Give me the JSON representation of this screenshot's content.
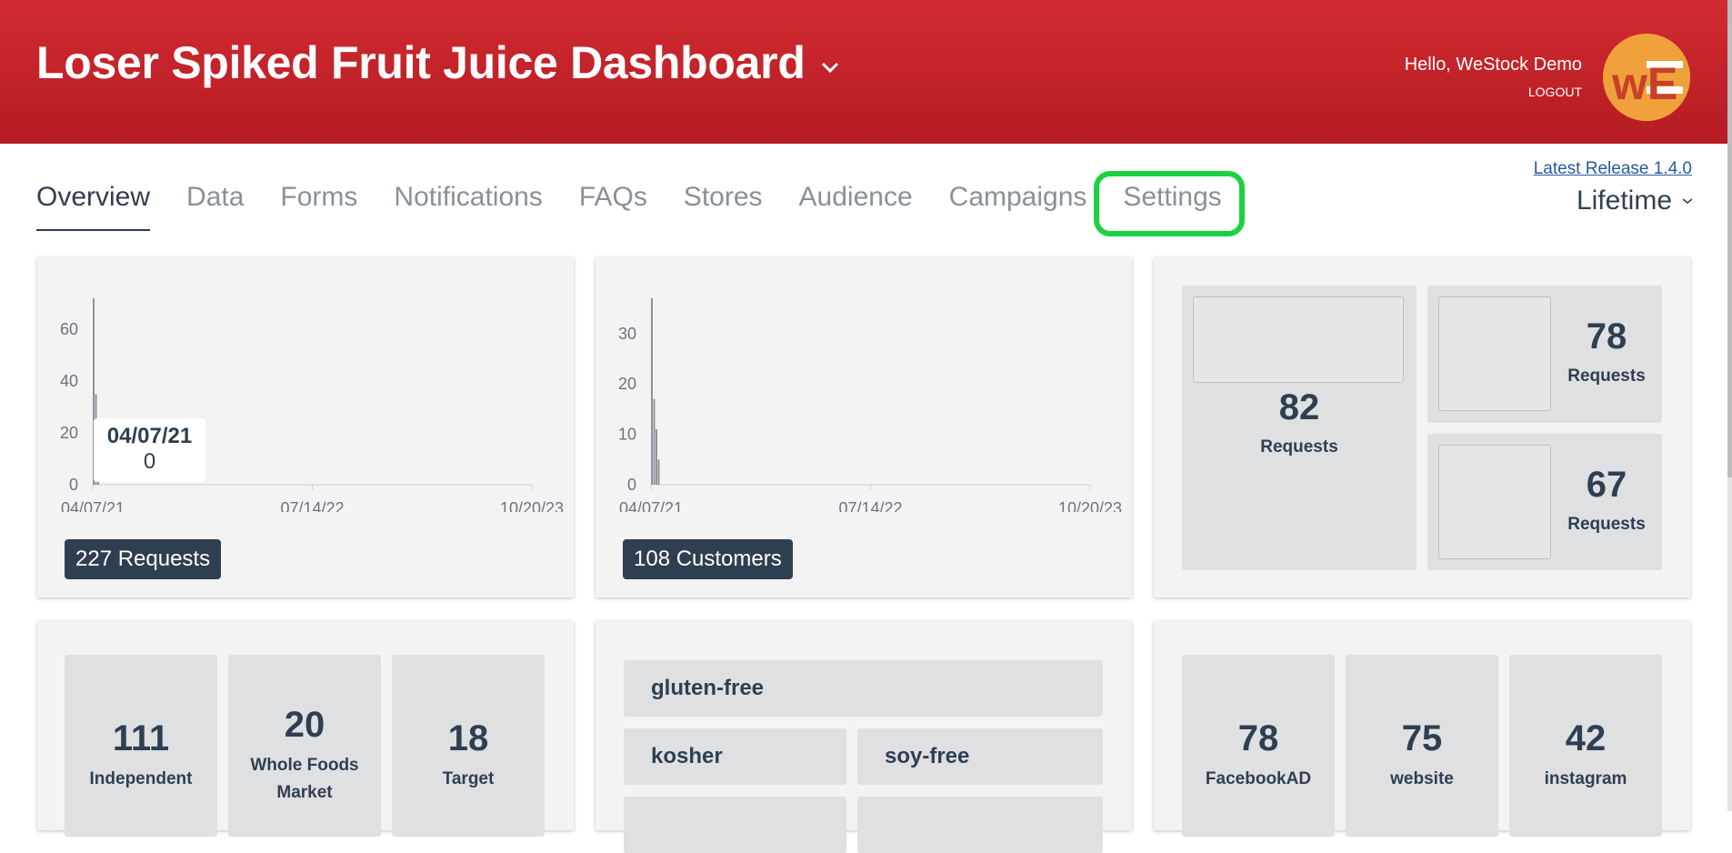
{
  "header": {
    "title": "Loser Spiked Fruit Juice Dashboard",
    "greeting": "Hello, WeStock Demo",
    "logout": "LOGOUT",
    "avatar_text": "wE",
    "colors": {
      "brand_red": "#c82027",
      "avatar": "#f0a13c"
    }
  },
  "nav": {
    "tabs": [
      {
        "label": "Overview"
      },
      {
        "label": "Data"
      },
      {
        "label": "Forms"
      },
      {
        "label": "Notifications"
      },
      {
        "label": "FAQs"
      },
      {
        "label": "Stores"
      },
      {
        "label": "Audience"
      },
      {
        "label": "Campaigns"
      },
      {
        "label": "Settings"
      }
    ],
    "active_tab": "Overview",
    "highlighted_tab": "Settings",
    "release_link": "Latest Release 1.4.0",
    "period": "Lifetime"
  },
  "requests_card": {
    "badge": "227 Requests",
    "tooltip": {
      "date": "04/07/21",
      "value": "0"
    }
  },
  "customers_card": {
    "badge": "108 Customers"
  },
  "source_card": {
    "big": {
      "value": "82",
      "label": "Requests"
    },
    "top": {
      "value": "78",
      "label": "Requests"
    },
    "bottom": {
      "value": "67",
      "label": "Requests"
    }
  },
  "stores_card": {
    "tiles": [
      {
        "value": "111",
        "label": "Independent"
      },
      {
        "value": "20",
        "label": "Whole Foods Market"
      },
      {
        "value": "18",
        "label": "Target"
      }
    ]
  },
  "tags_card": {
    "tags": [
      "gluten-free",
      "kosher",
      "soy-free"
    ]
  },
  "channels_card": {
    "tiles": [
      {
        "value": "78",
        "label": "FacebookAD"
      },
      {
        "value": "75",
        "label": "website"
      },
      {
        "value": "42",
        "label": "instagram"
      }
    ]
  },
  "chart_data": [
    {
      "type": "area",
      "x_tick_labels": [
        "04/07/21",
        "07/14/22",
        "10/20/23"
      ],
      "y_ticks": [
        0,
        20,
        40,
        60
      ],
      "ylim": [
        0,
        72
      ],
      "x": [
        "04/07/21"
      ],
      "values": [
        0
      ],
      "spike_values": [
        72,
        35,
        10
      ],
      "grid": false
    },
    {
      "type": "area",
      "x_tick_labels": [
        "04/07/21",
        "07/14/22",
        "10/20/23"
      ],
      "y_ticks": [
        0,
        10,
        20,
        30
      ],
      "ylim": [
        0,
        37
      ],
      "spike_values": [
        37,
        17,
        11,
        5
      ],
      "grid": false
    }
  ]
}
